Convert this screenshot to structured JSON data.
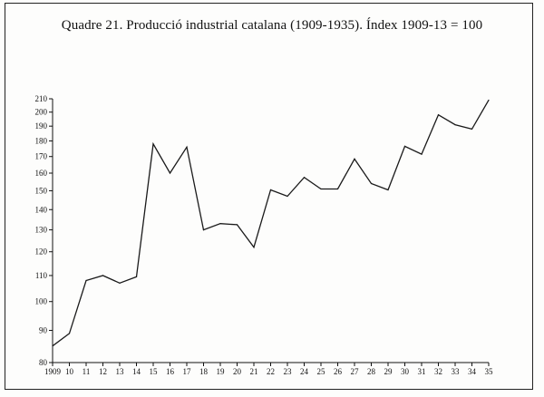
{
  "chart_data": {
    "type": "line",
    "title": "Quadre 21. Producció industrial catalana (1909-1935). Índex 1909-13 = 100",
    "xlabel": "",
    "ylabel": "",
    "x": [
      1909,
      1910,
      1911,
      1912,
      1913,
      1914,
      1915,
      1916,
      1917,
      1918,
      1919,
      1920,
      1921,
      1922,
      1923,
      1924,
      1925,
      1926,
      1927,
      1928,
      1929,
      1930,
      1931,
      1932,
      1933,
      1934,
      1935
    ],
    "x_tick_labels": [
      "1909",
      "10",
      "11",
      "12",
      "13",
      "14",
      "15",
      "16",
      "17",
      "18",
      "19",
      "20",
      "21",
      "22",
      "23",
      "24",
      "25",
      "26",
      "27",
      "28",
      "29",
      "30",
      "31",
      "32",
      "33",
      "34",
      "35"
    ],
    "series": [
      {
        "values": [
          85,
          89,
          108,
          110,
          107,
          109.5,
          178,
          160,
          176,
          130,
          133,
          132.5,
          122,
          150.5,
          147,
          157.5,
          151,
          151,
          168.5,
          154,
          150.5,
          176.5,
          171.5,
          198,
          191,
          188,
          209
        ]
      }
    ],
    "y_ticks": [
      80,
      90,
      100,
      110,
      120,
      130,
      140,
      150,
      160,
      170,
      180,
      190,
      200,
      210
    ],
    "ylim": [
      80,
      210
    ],
    "y_scale": "log",
    "grid": false,
    "line_color": "#1a1a1a"
  }
}
